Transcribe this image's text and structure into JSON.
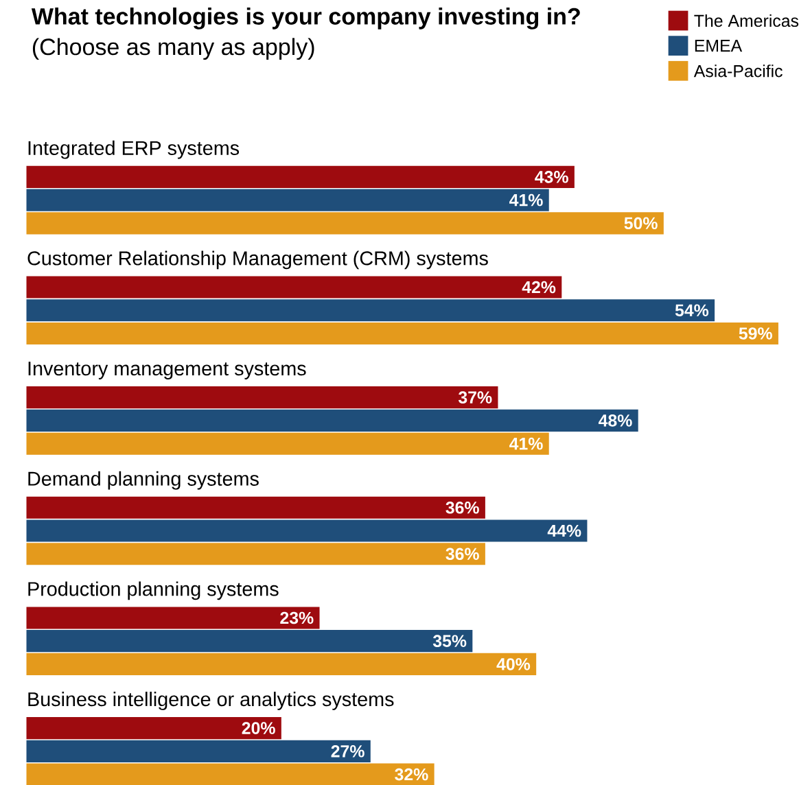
{
  "chart_data": {
    "type": "bar",
    "orientation": "horizontal",
    "title": "What technologies is your company investing in?",
    "subtitle": "(Choose as many as apply)",
    "categories": [
      "Integrated ERP systems",
      "Customer Relationship Management (CRM) systems",
      "Inventory management systems",
      "Demand planning systems",
      "Production planning systems",
      "Business intelligence or analytics systems"
    ],
    "series": [
      {
        "name": "The Americas",
        "color": "#9e0b0f",
        "values": [
          43,
          42,
          37,
          36,
          23,
          20
        ],
        "value_labels": [
          "43%",
          "42%",
          "37%",
          "36%",
          "23%",
          "20%"
        ]
      },
      {
        "name": "EMEA",
        "color": "#1f4e7a",
        "values": [
          41,
          54,
          48,
          44,
          35,
          27
        ],
        "value_labels": [
          "41%",
          "54%",
          "48%",
          "44%",
          "35%",
          "27%"
        ]
      },
      {
        "name": "Asia-Pacific",
        "color": "#e49a1c",
        "values": [
          50,
          59,
          41,
          36,
          40,
          32
        ],
        "value_labels": [
          "50%",
          "59%",
          "41%",
          "36%",
          "40%",
          "32%"
        ]
      }
    ],
    "data_labels": true,
    "legend": "top right"
  }
}
